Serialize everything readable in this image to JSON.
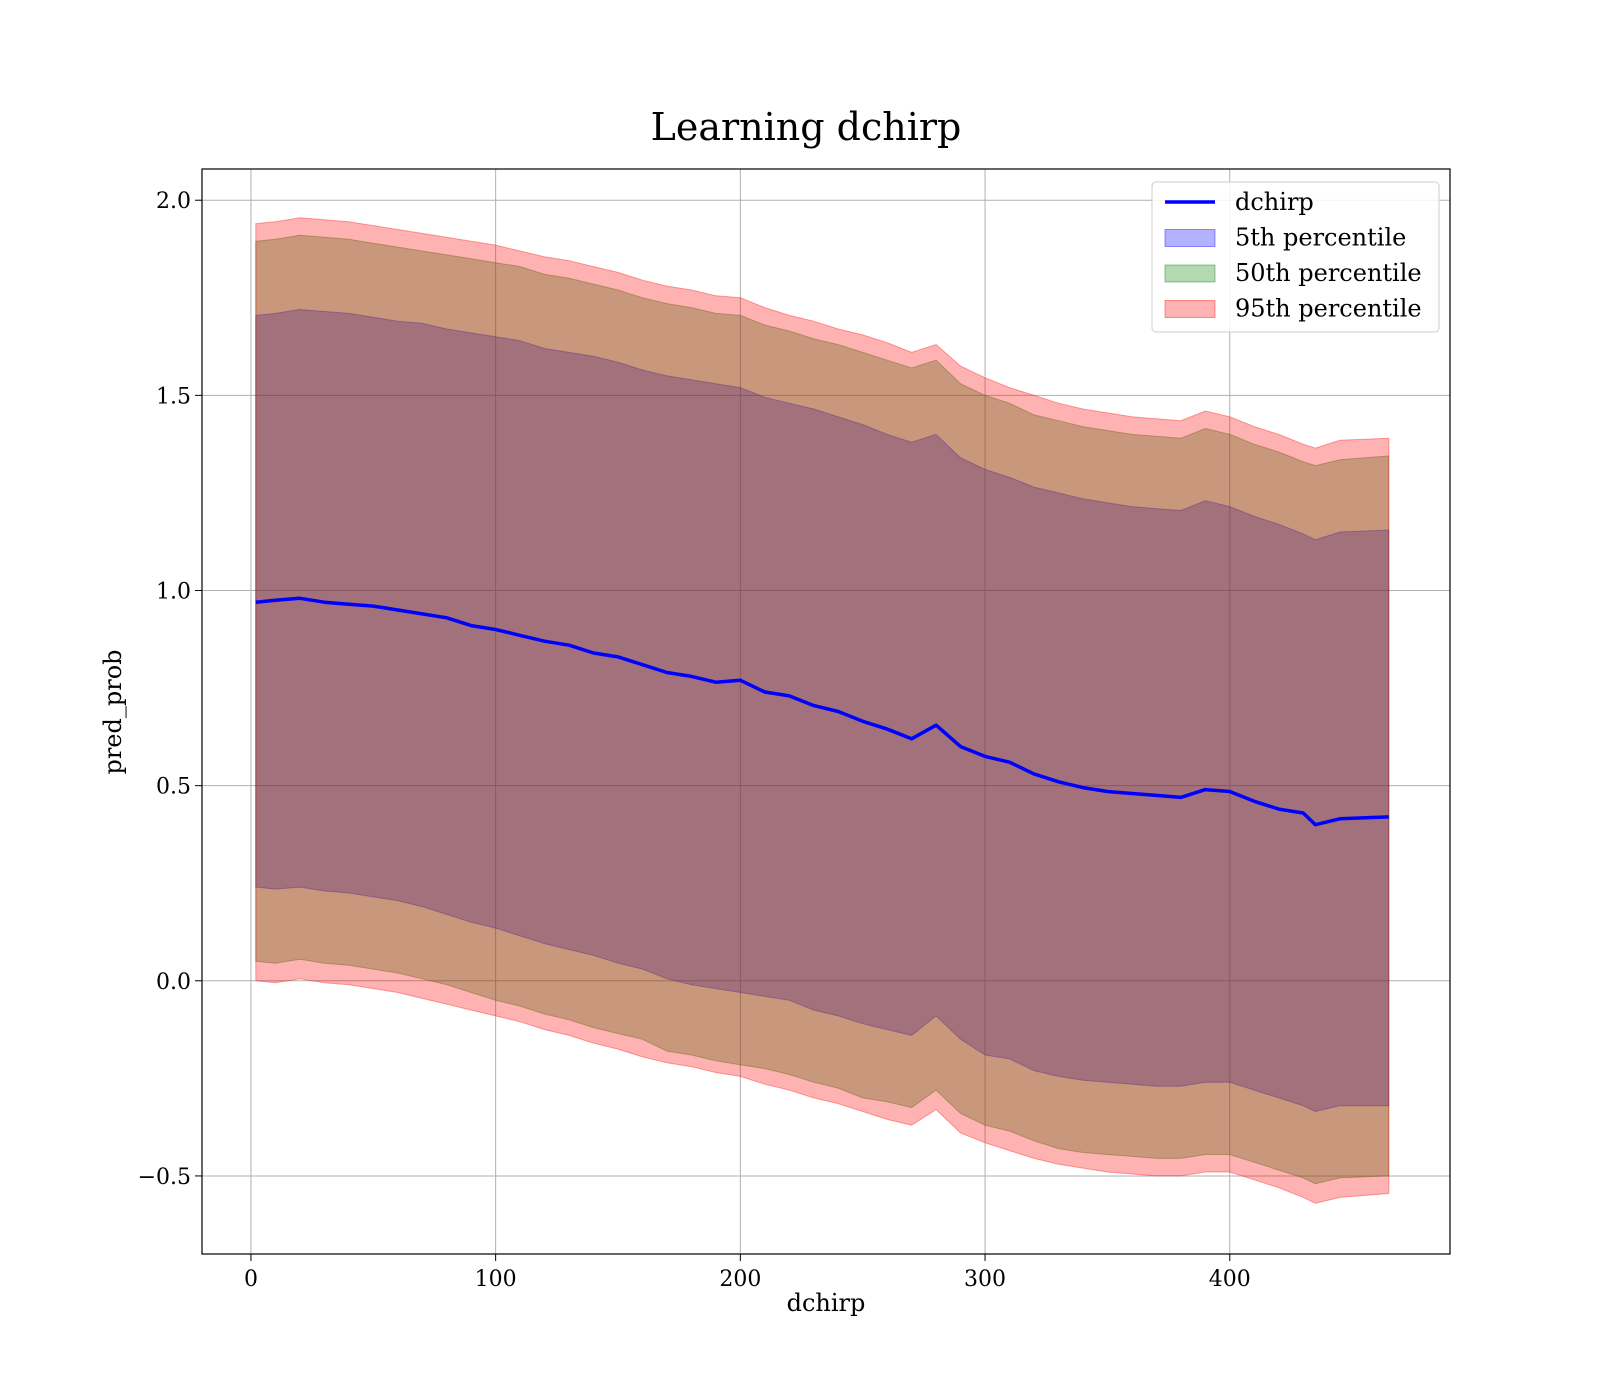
{
  "chart_data": {
    "type": "line",
    "title": "Learning dchirp",
    "xlabel": "dchirp",
    "ylabel": "pred_prob",
    "xlim": [
      -20,
      490
    ],
    "ylim": [
      -0.7,
      2.08
    ],
    "xticks": [
      0,
      100,
      200,
      300,
      400
    ],
    "yticks": [
      -0.5,
      0.0,
      0.5,
      1.0,
      1.5,
      2.0
    ],
    "xtick_labels": [
      "0",
      "100",
      "200",
      "300",
      "400"
    ],
    "ytick_labels": [
      "−0.5",
      "0.0",
      "0.5",
      "1.0",
      "1.5",
      "2.0"
    ],
    "grid": true,
    "legend_position": "top-right",
    "x": [
      2,
      10,
      20,
      30,
      40,
      50,
      60,
      70,
      80,
      90,
      100,
      110,
      120,
      130,
      140,
      150,
      160,
      170,
      180,
      190,
      200,
      210,
      220,
      230,
      240,
      250,
      260,
      270,
      280,
      290,
      300,
      310,
      320,
      330,
      340,
      350,
      360,
      370,
      380,
      390,
      400,
      410,
      420,
      430,
      435,
      445,
      465
    ],
    "series": [
      {
        "name": "dchirp",
        "kind": "line",
        "color": "#0000ff",
        "values": [
          0.97,
          0.975,
          0.98,
          0.97,
          0.965,
          0.96,
          0.95,
          0.94,
          0.93,
          0.91,
          0.9,
          0.885,
          0.87,
          0.86,
          0.84,
          0.83,
          0.81,
          0.79,
          0.78,
          0.765,
          0.77,
          0.74,
          0.73,
          0.705,
          0.69,
          0.665,
          0.645,
          0.62,
          0.655,
          0.6,
          0.575,
          0.56,
          0.53,
          0.51,
          0.495,
          0.485,
          0.48,
          0.475,
          0.47,
          0.49,
          0.485,
          0.46,
          0.44,
          0.43,
          0.4,
          0.415,
          0.42
        ]
      },
      {
        "name": "5th percentile",
        "kind": "band",
        "color": "#0000ff",
        "opacity": 0.3,
        "lower": [
          0.24,
          0.235,
          0.24,
          0.23,
          0.225,
          0.215,
          0.205,
          0.19,
          0.17,
          0.15,
          0.135,
          0.115,
          0.095,
          0.08,
          0.065,
          0.045,
          0.03,
          0.005,
          -0.01,
          -0.02,
          -0.03,
          -0.04,
          -0.05,
          -0.075,
          -0.09,
          -0.11,
          -0.125,
          -0.14,
          -0.09,
          -0.15,
          -0.19,
          -0.2,
          -0.23,
          -0.245,
          -0.255,
          -0.26,
          -0.265,
          -0.27,
          -0.27,
          -0.26,
          -0.26,
          -0.28,
          -0.3,
          -0.32,
          -0.335,
          -0.32,
          -0.32
        ],
        "upper": [
          1.705,
          1.71,
          1.72,
          1.715,
          1.71,
          1.7,
          1.69,
          1.685,
          1.67,
          1.66,
          1.65,
          1.64,
          1.62,
          1.61,
          1.6,
          1.585,
          1.565,
          1.55,
          1.54,
          1.53,
          1.52,
          1.495,
          1.48,
          1.465,
          1.445,
          1.425,
          1.4,
          1.38,
          1.4,
          1.34,
          1.31,
          1.29,
          1.265,
          1.25,
          1.235,
          1.225,
          1.215,
          1.21,
          1.205,
          1.23,
          1.215,
          1.19,
          1.17,
          1.145,
          1.13,
          1.15,
          1.155
        ]
      },
      {
        "name": "50th percentile",
        "kind": "band",
        "color": "#008000",
        "opacity": 0.3,
        "lower": [
          0.05,
          0.045,
          0.055,
          0.045,
          0.04,
          0.03,
          0.02,
          0.005,
          -0.01,
          -0.03,
          -0.05,
          -0.065,
          -0.085,
          -0.1,
          -0.12,
          -0.135,
          -0.15,
          -0.18,
          -0.19,
          -0.205,
          -0.215,
          -0.225,
          -0.24,
          -0.26,
          -0.275,
          -0.3,
          -0.31,
          -0.325,
          -0.28,
          -0.34,
          -0.37,
          -0.385,
          -0.41,
          -0.43,
          -0.44,
          -0.445,
          -0.45,
          -0.455,
          -0.455,
          -0.445,
          -0.445,
          -0.465,
          -0.485,
          -0.505,
          -0.52,
          -0.505,
          -0.5
        ],
        "upper": [
          1.895,
          1.9,
          1.91,
          1.905,
          1.9,
          1.89,
          1.88,
          1.87,
          1.86,
          1.85,
          1.84,
          1.83,
          1.81,
          1.8,
          1.785,
          1.77,
          1.75,
          1.735,
          1.725,
          1.71,
          1.705,
          1.68,
          1.665,
          1.645,
          1.63,
          1.61,
          1.59,
          1.57,
          1.59,
          1.53,
          1.5,
          1.48,
          1.45,
          1.435,
          1.42,
          1.41,
          1.4,
          1.395,
          1.39,
          1.415,
          1.4,
          1.375,
          1.355,
          1.33,
          1.32,
          1.335,
          1.345
        ]
      },
      {
        "name": "95th percentile",
        "kind": "band",
        "color": "#ff0000",
        "opacity": 0.3,
        "lower": [
          0.0,
          -0.005,
          0.005,
          -0.005,
          -0.01,
          -0.02,
          -0.03,
          -0.045,
          -0.06,
          -0.075,
          -0.09,
          -0.105,
          -0.125,
          -0.14,
          -0.16,
          -0.175,
          -0.195,
          -0.21,
          -0.22,
          -0.235,
          -0.245,
          -0.265,
          -0.28,
          -0.3,
          -0.315,
          -0.335,
          -0.355,
          -0.37,
          -0.33,
          -0.39,
          -0.415,
          -0.435,
          -0.455,
          -0.47,
          -0.48,
          -0.49,
          -0.495,
          -0.5,
          -0.5,
          -0.49,
          -0.49,
          -0.51,
          -0.53,
          -0.555,
          -0.57,
          -0.555,
          -0.545
        ],
        "upper": [
          1.94,
          1.945,
          1.955,
          1.95,
          1.945,
          1.935,
          1.925,
          1.915,
          1.905,
          1.895,
          1.885,
          1.87,
          1.855,
          1.845,
          1.83,
          1.815,
          1.795,
          1.78,
          1.77,
          1.755,
          1.75,
          1.725,
          1.705,
          1.69,
          1.67,
          1.655,
          1.635,
          1.61,
          1.63,
          1.575,
          1.545,
          1.52,
          1.5,
          1.48,
          1.465,
          1.455,
          1.445,
          1.44,
          1.435,
          1.46,
          1.445,
          1.42,
          1.4,
          1.375,
          1.365,
          1.385,
          1.39
        ]
      }
    ]
  }
}
